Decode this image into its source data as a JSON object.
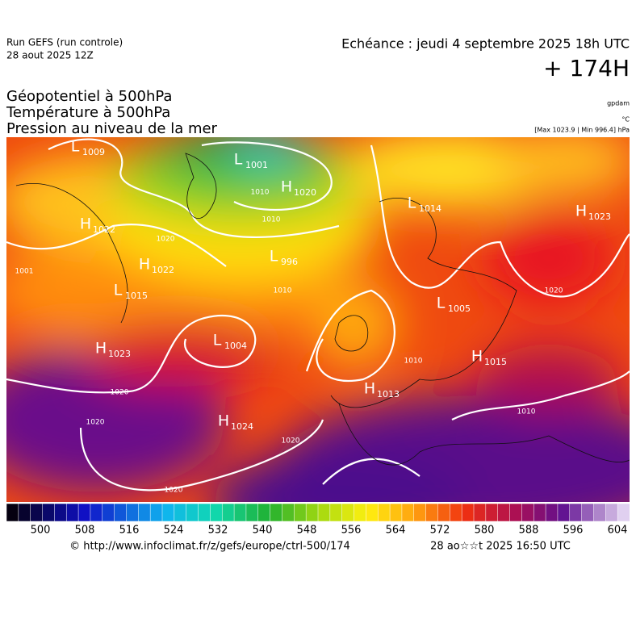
{
  "header": {
    "run": "Run GEFS (run controle)",
    "run_date": "28 aout 2025 12Z",
    "valid_time": "Echéance : jeudi 4 septembre 2025 18h UTC",
    "lead": "+ 174H",
    "fields": [
      "Géopotentiel à 500hPa",
      "Température à 500hPa",
      "Pression au niveau de la mer"
    ],
    "units": [
      "gpdam",
      "°C",
      "[Max 1023.9 | Min 996.4] hPa"
    ]
  },
  "pressure_centers": [
    {
      "letter": "L",
      "value": "1009"
    },
    {
      "letter": "L",
      "value": "1001"
    },
    {
      "letter": "H",
      "value": "1020"
    },
    {
      "letter": "L",
      "value": "1014"
    },
    {
      "letter": "H",
      "value": "1023"
    },
    {
      "letter": "H",
      "value": "1022"
    },
    {
      "letter": "H",
      "value": "1022"
    },
    {
      "letter": "L",
      "value": "1015"
    },
    {
      "letter": "L",
      "value": "996"
    },
    {
      "letter": "H",
      "value": "1023"
    },
    {
      "letter": "L",
      "value": "1004"
    },
    {
      "letter": "L",
      "value": "1005"
    },
    {
      "letter": "H",
      "value": "1015"
    },
    {
      "letter": "H",
      "value": "1013"
    },
    {
      "letter": "H",
      "value": "1024"
    }
  ],
  "isobar_labels": [
    "1001",
    "1020",
    "1010",
    "1010",
    "1010",
    "1020",
    "1020",
    "1020",
    "1020",
    "1010",
    "1020",
    "1010"
  ],
  "colorbar": {
    "ticks": [
      500,
      508,
      516,
      524,
      532,
      540,
      548,
      556,
      564,
      572,
      580,
      588,
      596,
      604
    ]
  },
  "footer": {
    "source": "© http://www.infoclimat.fr/z/gefs/europe/ctrl-500/174",
    "generated": "28 ao☆☆t 2025 16:50 UTC"
  }
}
